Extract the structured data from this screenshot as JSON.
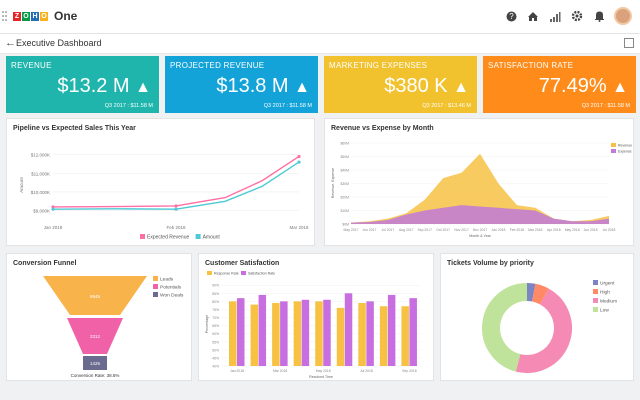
{
  "app": {
    "name": "One",
    "logo_letters": [
      "Z",
      "O",
      "H",
      "O"
    ],
    "logo_colors": [
      "#e42527",
      "#089949",
      "#226db4",
      "#f9b21d"
    ]
  },
  "header": {
    "title": "Executive Dashboard",
    "icons": [
      "help-icon",
      "home-icon",
      "signal-icon",
      "gear-icon",
      "bell-icon"
    ]
  },
  "kpis": [
    {
      "label": "REVENUE",
      "value": "$13.2 M",
      "period": "Q3 2017 : $11.58 M",
      "color": "#1fb5ad"
    },
    {
      "label": "PROJECTED REVENUE",
      "value": "$13.8 M",
      "period": "Q3 2017 : $11.58 M",
      "color": "#13a3d9"
    },
    {
      "label": "MARKETING EXPENSES",
      "value": "$380 K",
      "period": "Q3 2017 : $13.46 M",
      "color": "#f2c12e"
    },
    {
      "label": "SATISFACTION RATE",
      "value": "77.49%",
      "period": "Q3 2017 : $11.58 M",
      "color": "#ff8c1a"
    }
  ],
  "charts": {
    "pipeline": {
      "title": "Pipeline vs Expected Sales This Year",
      "ylabel": "Amount",
      "chart_data": {
        "type": "line",
        "x": [
          "Jan 2018",
          "Feb 2018",
          "Mar 2018"
        ],
        "yticks": [
          "$12,000K",
          "$11,000K",
          "$10,000K",
          "$9,000K"
        ],
        "ylim": [
          8500,
          12300
        ],
        "series": [
          {
            "name": "Expected Revenue",
            "color": "#ff6fa4",
            "points": [
              [
                0,
                9200
              ],
              [
                0.5,
                9220
              ],
              [
                1,
                9250
              ],
              [
                1.4,
                9700
              ],
              [
                1.7,
                10600
              ],
              [
                2,
                11900
              ]
            ]
          },
          {
            "name": "Amount",
            "color": "#4ec9d5",
            "points": [
              [
                0,
                9080
              ],
              [
                0.5,
                9100
              ],
              [
                1,
                9080
              ],
              [
                1.4,
                9500
              ],
              [
                1.7,
                10300
              ],
              [
                2,
                11600
              ]
            ]
          }
        ]
      }
    },
    "revenue_expense": {
      "title": "Revenue vs Expense by Month",
      "ylabel": "Revenue, Expense",
      "xlabel": "Month & Year",
      "chart_data": {
        "type": "area",
        "categories": [
          "May 2017",
          "Jun 2017",
          "Jul 2017",
          "Aug 2017",
          "Sep 2017",
          "Oct 2017",
          "Nov 2017",
          "Dec 2017",
          "Jan 2018",
          "Feb 2018",
          "Mar 2018",
          "Apr 2018",
          "May 2018",
          "Jun 2018",
          "Jul 2018"
        ],
        "yticks": [
          "$60M",
          "$50M",
          "$40M",
          "$30M",
          "$20M",
          "$10M",
          "$0M"
        ],
        "ylim": [
          0,
          60
        ],
        "series": [
          {
            "name": "Revenue",
            "color": "#f7c244",
            "values": [
              1,
              2,
              4,
              8,
              18,
              34,
              38,
              52,
              30,
              14,
              12,
              4,
              2,
              3,
              6
            ]
          },
          {
            "name": "Expense",
            "color": "#c07ad8",
            "values": [
              1,
              1.5,
              3,
              7,
              10,
              12,
              14,
              13,
              12,
              11,
              10,
              4,
              2,
              2,
              4
            ]
          }
        ]
      }
    },
    "funnel": {
      "title": "Conversion Funnel",
      "legend": [
        {
          "name": "Leads",
          "color": "#f9b34b"
        },
        {
          "name": "Potentials",
          "color": "#f061a7"
        },
        {
          "name": "Won Deals",
          "color": "#6b6b8f"
        }
      ],
      "chart_data": {
        "type": "funnel",
        "categories": [
          "Leads",
          "Potentials",
          "Won Deals"
        ],
        "values": [
          "8845",
          "2312",
          "1425"
        ]
      },
      "footer": "Conversion Rate: 38.5%"
    },
    "satisfaction": {
      "title": "Customer Satisfaction",
      "ylabel": "Percentage",
      "xlabel": "Resolved Time",
      "chart_data": {
        "type": "bar",
        "categories": [
          "Jan 2018",
          "",
          "Mar 2018",
          "",
          "May 2018",
          "",
          "Jul 2018",
          "",
          "Sep 2018"
        ],
        "yticks": [
          "90%",
          "85%",
          "80%",
          "75%",
          "70%",
          "65%",
          "60%",
          "55%",
          "50%",
          "45%",
          "40%"
        ],
        "ylim": [
          40,
          92
        ],
        "series": [
          {
            "name": "Response Rate",
            "color": "#f7c244",
            "values": [
              80,
              78,
              79,
              80,
              80,
              76,
              79,
              77,
              77
            ]
          },
          {
            "name": "Satisfaction Rate",
            "color": "#c76fe0",
            "values": [
              82,
              84,
              80,
              81,
              81,
              85,
              80,
              84,
              82
            ]
          }
        ]
      }
    },
    "tickets": {
      "title": "Tickets Volume by priority",
      "chart_data": {
        "type": "pie",
        "series": [
          {
            "name": "Urgent",
            "color": "#7c84c4",
            "value": 3
          },
          {
            "name": "High",
            "color": "#ff8a65",
            "value": 5
          },
          {
            "name": "Medium",
            "color": "#f58bb4",
            "value": 46
          },
          {
            "name": "Low",
            "color": "#bfe39a",
            "value": 46
          }
        ]
      }
    }
  }
}
